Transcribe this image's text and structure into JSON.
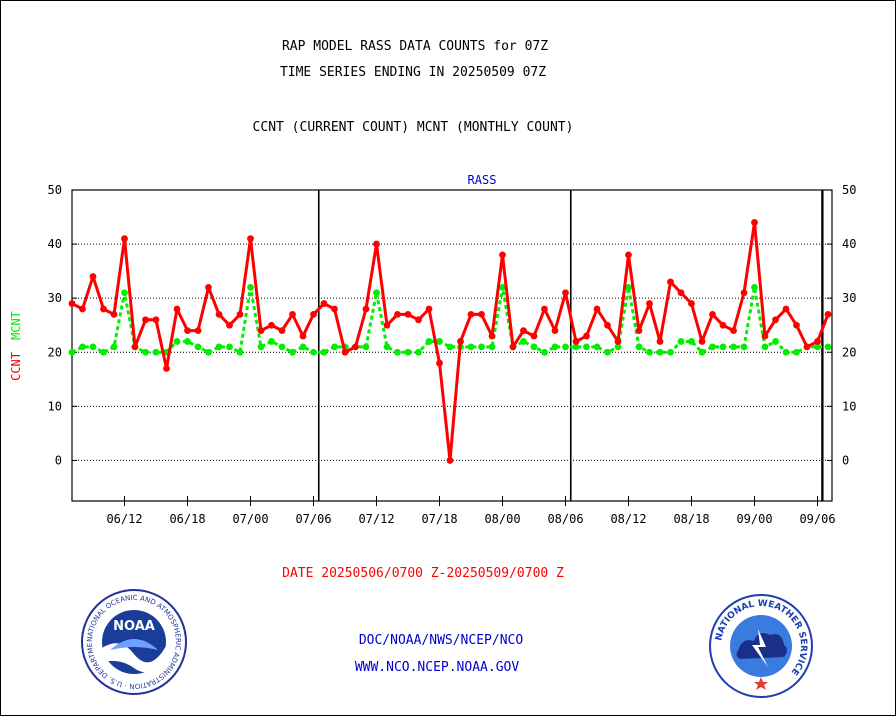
{
  "header": {
    "title_line1": "RAP MODEL RASS DATA COUNTS for 07Z",
    "title_line2": "TIME SERIES ENDING IN 20250509 07Z",
    "subtitle": "CCNT (CURRENT COUNT) MCNT (MONTHLY COUNT)"
  },
  "footer": {
    "date_range": "DATE 20250506/0700 Z-20250509/0700 Z",
    "org": "DOC/NOAA/NWS/NCEP/NCO",
    "url": "WWW.NCO.NCEP.NOAA.GOV"
  },
  "logos": {
    "noaa_text": "NOAA",
    "noaa_ring": "NATIONAL OCEANIC AND ATMOSPHERIC ADMINISTRATION · U.S. DEPARTMENT OF COMMERCE ·",
    "nws_ring": "NATIONAL WEATHER SERVICE"
  },
  "colors": {
    "ccnt": "#ff0000",
    "mcnt": "#00ee00",
    "label_blue": "#0000cc",
    "date_red": "#ff0000"
  },
  "chart_data": {
    "type": "line",
    "title": "RASS",
    "ylabel_left_parts": [
      "CCNT",
      "MCNT"
    ],
    "ylim": [
      -7.5,
      50
    ],
    "yticks": [
      0,
      10,
      20,
      30,
      40,
      50
    ],
    "grid": true,
    "x_count": 73,
    "xtick_labels": [
      "06/12",
      "06/18",
      "07/00",
      "07/06",
      "07/12",
      "07/18",
      "08/00",
      "08/06",
      "08/12",
      "08/18",
      "09/00",
      "09/06"
    ],
    "xtick_index": [
      5,
      11,
      17,
      23,
      29,
      35,
      41,
      47,
      53,
      59,
      65,
      71
    ],
    "day_boundaries_index": [
      23.5,
      47.5,
      71.5
    ],
    "series": [
      {
        "name": "CCNT",
        "values": [
          29,
          28,
          34,
          28,
          27,
          41,
          21,
          26,
          26,
          17,
          28,
          24,
          24,
          32,
          27,
          25,
          27,
          41,
          24,
          25,
          24,
          27,
          23,
          27,
          29,
          28,
          20,
          21,
          28,
          40,
          25,
          27,
          27,
          26,
          28,
          18,
          0,
          22,
          27,
          27,
          23,
          38,
          21,
          24,
          23,
          28,
          24,
          31,
          22,
          23,
          28,
          25,
          22,
          38,
          24,
          29,
          22,
          33,
          31,
          29,
          22,
          27,
          25,
          24,
          31,
          44,
          23,
          26,
          28,
          25,
          21,
          22,
          27
        ]
      },
      {
        "name": "MCNT",
        "values": [
          20,
          21,
          21,
          20,
          21,
          31,
          21,
          20,
          20,
          20,
          22,
          22,
          21,
          20,
          21,
          21,
          20,
          32,
          21,
          22,
          21,
          20,
          21,
          20,
          20,
          21,
          21,
          21,
          21,
          31,
          21,
          20,
          20,
          20,
          22,
          22,
          21,
          21,
          21,
          21,
          21,
          32,
          21,
          22,
          21,
          20,
          21,
          21,
          21,
          21,
          21,
          20,
          21,
          32,
          21,
          20,
          20,
          20,
          22,
          22,
          20,
          21,
          21,
          21,
          21,
          32,
          21,
          22,
          20,
          20,
          21,
          21,
          21
        ]
      }
    ]
  }
}
